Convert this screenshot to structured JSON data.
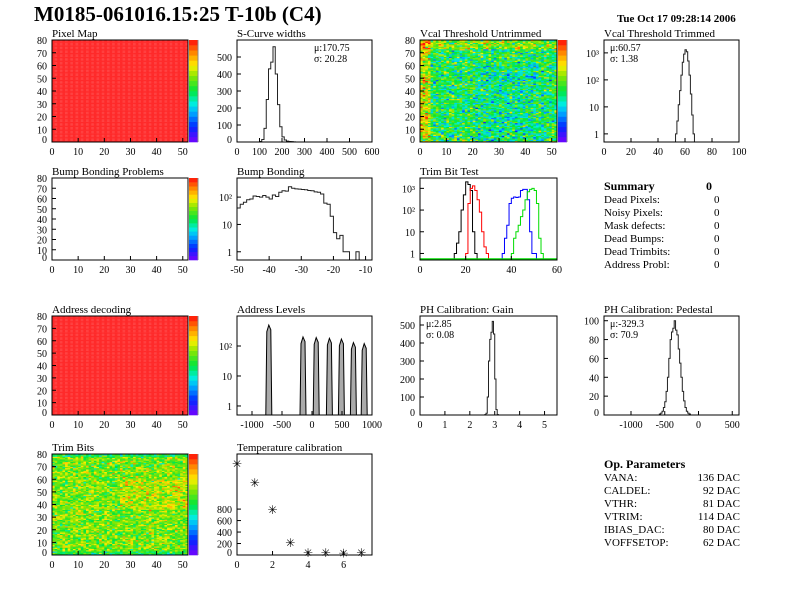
{
  "header": {
    "title": "M0185-061016.15:25 T-10b (C4)",
    "date": "Tue Oct 17 09:28:14 2006"
  },
  "colors": {
    "line": "#000000",
    "trim_series": [
      "#000000",
      "#ff0000",
      "#0000ff",
      "#00dd00"
    ],
    "palette": "rainbow violet-to-red"
  },
  "summary": {
    "title": "Summary",
    "total": "0",
    "items": [
      {
        "label": "Dead Pixels:",
        "value": "0"
      },
      {
        "label": "Noisy Pixels:",
        "value": "0"
      },
      {
        "label": "Mask defects:",
        "value": "0"
      },
      {
        "label": "Dead Bumps:",
        "value": "0"
      },
      {
        "label": "Dead Trimbits:",
        "value": "0"
      },
      {
        "label": "Address Probl:",
        "value": "0"
      }
    ]
  },
  "op_parameters": {
    "title": "Op. Parameters",
    "items": [
      {
        "label": "VANA:",
        "value": "136 DAC"
      },
      {
        "label": "CALDEL:",
        "value": "92 DAC"
      },
      {
        "label": "VTHR:",
        "value": "81 DAC"
      },
      {
        "label": "VTRIM:",
        "value": "114 DAC"
      },
      {
        "label": "IBIAS_DAC:",
        "value": "80 DAC"
      },
      {
        "label": "VOFFSETOP:",
        "value": "62 DAC"
      }
    ]
  },
  "chart_data": [
    {
      "id": "pixel_map",
      "type": "heatmap",
      "title": "Pixel Map",
      "xlim": [
        0,
        52
      ],
      "ylim": [
        0,
        80
      ],
      "xticks": [
        0,
        10,
        20,
        30,
        40,
        50
      ],
      "yticks": [
        0,
        10,
        20,
        30,
        40,
        50,
        60,
        70,
        80
      ],
      "zlim": [
        0,
        10
      ],
      "pattern": "uniform",
      "z_value": 10
    },
    {
      "id": "scurve",
      "type": "bar",
      "title": "S-Curve widths",
      "xlim": [
        0,
        600
      ],
      "ylim": [
        0,
        600
      ],
      "log": false,
      "xticks": [
        0,
        100,
        200,
        300,
        400,
        500,
        600
      ],
      "yticks": [
        0,
        100,
        200,
        300,
        400,
        500
      ],
      "bins": {
        "start": 100,
        "width": 10,
        "counts": [
          3,
          15,
          80,
          250,
          430,
          470,
          560,
          400,
          220,
          90,
          30,
          12,
          5,
          3,
          2,
          1
        ]
      },
      "stats": [
        "μ:170.75",
        "σ: 20.28"
      ]
    },
    {
      "id": "vcal_untrimmed",
      "type": "heatmap",
      "title": "Vcal Threshold Untrimmed",
      "xlim": [
        0,
        52
      ],
      "ylim": [
        0,
        80
      ],
      "xticks": [
        0,
        10,
        20,
        30,
        40,
        50
      ],
      "yticks": [
        0,
        10,
        20,
        30,
        40,
        50,
        60,
        70,
        80
      ],
      "zlim": [
        85,
        125
      ],
      "pattern": "noise",
      "z_mean": 105,
      "z_spread": 5
    },
    {
      "id": "vcal_trimmed",
      "type": "bar",
      "title": "Vcal Threshold Trimmed",
      "xlim": [
        0,
        100
      ],
      "ylim": [
        0.5,
        3000
      ],
      "log": true,
      "xticks": [
        0,
        20,
        40,
        60,
        80,
        100
      ],
      "yticks": [
        1,
        10,
        100,
        1000
      ],
      "bins": {
        "start": 53,
        "width": 1,
        "counts": [
          1,
          3,
          12,
          40,
          150,
          450,
          900,
          1300,
          1100,
          500,
          150,
          30,
          5,
          1
        ]
      },
      "stats": [
        "μ:60.57",
        "σ: 1.38"
      ]
    },
    {
      "id": "bump_problems",
      "type": "heatmap",
      "title": "Bump Bonding Problems",
      "xlim": [
        0,
        52
      ],
      "ylim": [
        0,
        80
      ],
      "xticks": [
        0,
        10,
        20,
        30,
        40,
        50
      ],
      "yticks": [
        0,
        10,
        20,
        30,
        40,
        50,
        60,
        70,
        80
      ],
      "zlim": [
        -2,
        2
      ],
      "pattern": "empty"
    },
    {
      "id": "bump_bonding",
      "type": "bar",
      "title": "Bump Bonding",
      "xlim": [
        -50,
        -8
      ],
      "ylim": [
        0.5,
        500
      ],
      "log": true,
      "xticks": [
        -50,
        -40,
        -30,
        -20,
        -10
      ],
      "yticks": [
        1,
        10,
        100
      ],
      "bins": {
        "start": -50,
        "width": 1,
        "counts": [
          40,
          55,
          65,
          80,
          85,
          110,
          105,
          100,
          115,
          100,
          85,
          120,
          105,
          150,
          170,
          165,
          240,
          210,
          200,
          195,
          190,
          185,
          175,
          170,
          155,
          150,
          130,
          60,
          55,
          20,
          5,
          3,
          4,
          1,
          1,
          0,
          0,
          1,
          0,
          0,
          0,
          0
        ]
      }
    },
    {
      "id": "trim_bit_test",
      "type": "bar",
      "title": "Trim Bit Test",
      "xlim": [
        0,
        60
      ],
      "ylim": [
        0.5,
        3000
      ],
      "log": true,
      "xticks": [
        0,
        20,
        40,
        60
      ],
      "yticks": [
        1,
        10,
        100,
        1000
      ],
      "series": [
        {
          "start": 15,
          "width": 1,
          "counts": [
            1,
            3,
            10,
            100,
            500,
            2000,
            1500,
            800,
            10,
            1
          ]
        },
        {
          "start": 20,
          "width": 1,
          "counts": [
            1,
            200,
            1000,
            1300,
            800,
            300,
            80,
            10,
            2,
            1
          ]
        },
        {
          "start": 36,
          "width": 1,
          "counts": [
            1,
            5,
            20,
            200,
            350,
            400,
            380,
            400,
            800,
            900,
            900,
            300,
            10,
            1,
            1
          ]
        },
        {
          "start": 40,
          "width": 1,
          "counts": [
            1,
            5,
            10,
            20,
            50,
            100,
            300,
            700,
            900,
            1000,
            800,
            200,
            5,
            1
          ]
        }
      ]
    },
    {
      "id": "address_decoding",
      "type": "heatmap",
      "title": "Address decoding",
      "xlim": [
        0,
        52
      ],
      "ylim": [
        0,
        80
      ],
      "xticks": [
        0,
        10,
        20,
        30,
        40,
        50
      ],
      "yticks": [
        0,
        10,
        20,
        30,
        40,
        50,
        60,
        70,
        80
      ],
      "zlim": [
        0,
        1
      ],
      "pattern": "uniform",
      "z_value": 1
    },
    {
      "id": "address_levels",
      "type": "bar",
      "title": "Address Levels",
      "xlim": [
        -1250,
        1000
      ],
      "ylim": [
        0.5,
        1000
      ],
      "log": true,
      "xticks": [
        -1000,
        -500,
        0,
        500,
        1000
      ],
      "yticks": [
        1,
        10,
        100
      ],
      "peaks": [
        {
          "x": -720,
          "count": 500
        },
        {
          "x": -150,
          "count": 200
        },
        {
          "x": 70,
          "count": 190
        },
        {
          "x": 290,
          "count": 180
        },
        {
          "x": 490,
          "count": 170
        },
        {
          "x": 690,
          "count": 130
        },
        {
          "x": 870,
          "count": 120
        }
      ]
    },
    {
      "id": "ph_gain",
      "type": "bar",
      "title": "PH Calibration: Gain",
      "xlim": [
        0,
        5.5
      ],
      "ylim": [
        0,
        550
      ],
      "log": false,
      "xticks": [
        0,
        1,
        2,
        3,
        4,
        5
      ],
      "yticks": [
        0,
        100,
        200,
        300,
        400,
        500
      ],
      "bins": {
        "start": 2.6,
        "width": 0.05,
        "counts": [
          2,
          10,
          100,
          300,
          420,
          460,
          520,
          450,
          200,
          30,
          2
        ]
      },
      "stats": [
        "μ:2.85",
        "σ: 0.08"
      ]
    },
    {
      "id": "ph_pedestal",
      "type": "bar",
      "title": "PH Calibration: Pedestal",
      "xlim": [
        -1400,
        600
      ],
      "ylim": [
        0,
        105
      ],
      "log": false,
      "xticks": [
        -1000,
        -500,
        0,
        500
      ],
      "yticks": [
        0,
        20,
        40,
        60,
        80,
        100
      ],
      "bins": {
        "start": -600,
        "width": 20,
        "counts": [
          0,
          1,
          2,
          4,
          8,
          14,
          25,
          40,
          60,
          80,
          88,
          92,
          100,
          90,
          85,
          70,
          55,
          40,
          25,
          15,
          8,
          4,
          2,
          1,
          0
        ]
      },
      "stats": [
        "μ:-329.3",
        "σ: 70.9"
      ]
    },
    {
      "id": "trim_bits",
      "type": "heatmap",
      "title": "Trim Bits",
      "xlim": [
        0,
        52
      ],
      "ylim": [
        0,
        80
      ],
      "xticks": [
        0,
        10,
        20,
        30,
        40,
        50
      ],
      "yticks": [
        0,
        10,
        20,
        30,
        40,
        50,
        60,
        70,
        80
      ],
      "zlim": [
        0,
        16
      ],
      "pattern": "noise",
      "z_mean": 10,
      "z_spread": 1.5
    },
    {
      "id": "temperature",
      "type": "scatter",
      "title": "Temperature calibration",
      "xlim": [
        0,
        7.6
      ],
      "ylim": [
        0,
        1760
      ],
      "xticks": [
        0,
        2,
        4,
        6
      ],
      "yticks": [
        0,
        200,
        400,
        600,
        800
      ],
      "x": [
        0,
        1,
        2,
        3,
        4,
        5,
        6,
        7
      ],
      "y": [
        1600,
        1270,
        800,
        225,
        50,
        50,
        45,
        55
      ]
    }
  ]
}
